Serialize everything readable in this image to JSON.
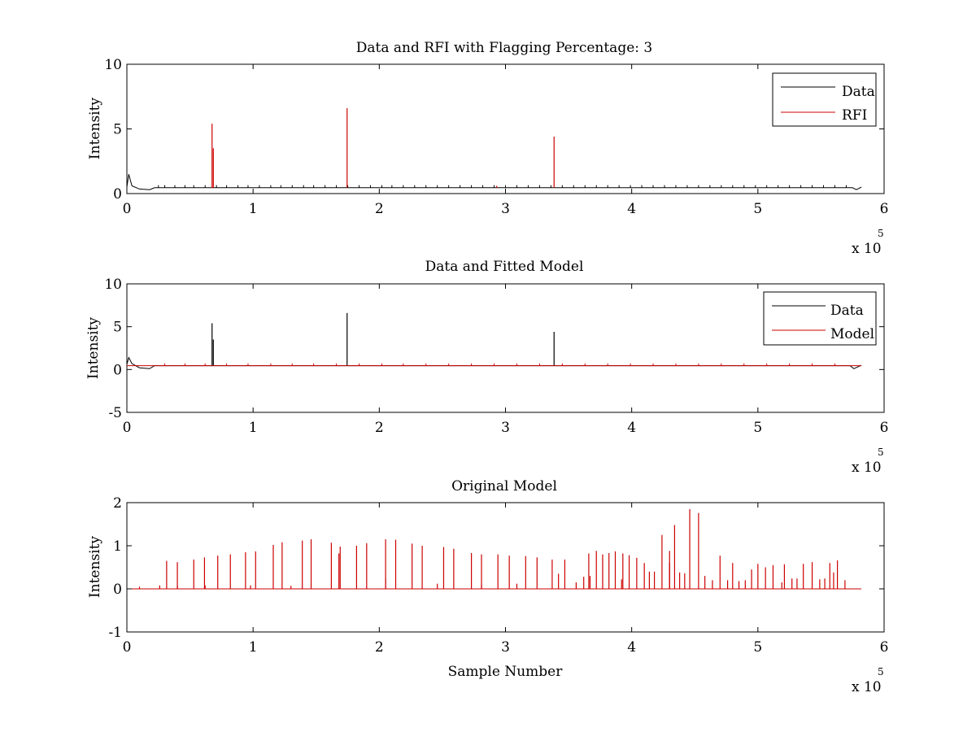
{
  "chart_data": [
    {
      "type": "line",
      "title": "Data and RFI with Flagging Percentage: 3",
      "xlabel": "",
      "ylabel": "Intensity",
      "xlim": [
        0,
        600000
      ],
      "ylim": [
        0,
        10
      ],
      "xticks": [
        0,
        1,
        2,
        3,
        4,
        5,
        6
      ],
      "yticks": [
        0,
        5,
        10
      ],
      "x_multiplier_label": "x 10",
      "x_multiplier_exponent": "5",
      "legend": {
        "position": "top-right",
        "entries": [
          "Data",
          "RFI"
        ]
      },
      "series": [
        {
          "name": "Data",
          "color": "#000000",
          "baseline": 0.45,
          "start_bump": [
            [
              0,
              0.5
            ],
            [
              1500,
              1.5
            ],
            [
              4000,
              0.6
            ],
            [
              10000,
              0.35
            ],
            [
              18000,
              0.3
            ],
            [
              22000,
              0.45
            ]
          ],
          "end_points": [
            [
              575000,
              0.45
            ],
            [
              578000,
              0.3
            ],
            [
              582000,
              0.5
            ]
          ],
          "x_end": 582000,
          "spike_x": [
            25000,
            30000,
            38000,
            46000,
            53000,
            62000,
            71000,
            79000,
            88000,
            96000,
            105000,
            114000,
            122000,
            131000,
            140000,
            148000,
            157000,
            166000,
            175000,
            184000,
            193000,
            202000,
            210000,
            219000,
            228000,
            237000,
            246000,
            255000,
            264000,
            273000,
            282000,
            291000,
            300000,
            309000,
            318000,
            327000,
            336000,
            345000,
            354000,
            363000,
            372000,
            381000,
            390000,
            399000,
            408000,
            417000,
            426000,
            435000,
            444000,
            453000,
            462000,
            471000,
            480000,
            489000,
            498000,
            507000,
            516000,
            525000,
            534000,
            543000,
            552000,
            561000,
            570000
          ],
          "spike_height": 0.65
        },
        {
          "name": "RFI",
          "color": "#cc0000",
          "spikes": [
            [
              67500,
              5.4
            ],
            [
              68500,
              3.5
            ],
            [
              174500,
              6.6
            ],
            [
              338500,
              4.4
            ],
            [
              293000,
              0.6
            ]
          ]
        }
      ]
    },
    {
      "type": "line",
      "title": "Data and Fitted Model",
      "xlabel": "",
      "ylabel": "Intensity",
      "xlim": [
        0,
        600000
      ],
      "ylim": [
        -5,
        10
      ],
      "xticks": [
        0,
        1,
        2,
        3,
        4,
        5,
        6
      ],
      "yticks": [
        -5,
        0,
        5,
        10
      ],
      "x_multiplier_label": "x 10",
      "x_multiplier_exponent": "5",
      "legend": {
        "position": "top-right",
        "entries": [
          "Data",
          "Model"
        ]
      },
      "series": [
        {
          "name": "Data",
          "color": "#000000",
          "baseline": 0.45,
          "start_bump": [
            [
              0,
              0.6
            ],
            [
              1500,
              1.4
            ],
            [
              4000,
              0.7
            ],
            [
              10000,
              0.2
            ],
            [
              18000,
              0.1
            ],
            [
              22000,
              0.45
            ]
          ],
          "end_points": [
            [
              573000,
              0.45
            ],
            [
              576000,
              0.1
            ],
            [
              582000,
              0.5
            ]
          ],
          "x_end": 582000,
          "spikes": [
            [
              67500,
              5.4
            ],
            [
              68500,
              3.5
            ],
            [
              174500,
              6.6
            ],
            [
              338500,
              4.4
            ]
          ]
        },
        {
          "name": "Model",
          "color": "#cc0000",
          "baseline": 0.45,
          "x_start": 0,
          "x_end": 582000,
          "spike_x": [
            30000,
            46000,
            62000,
            79000,
            96000,
            114000,
            131000,
            148000,
            166000,
            184000,
            202000,
            219000,
            237000,
            255000,
            273000,
            291000,
            309000,
            327000,
            345000,
            363000,
            381000,
            399000,
            417000,
            435000,
            453000,
            471000,
            489000,
            507000,
            525000,
            543000,
            561000
          ],
          "spike_height": 0.7
        }
      ]
    },
    {
      "type": "line",
      "title": "Original Model",
      "xlabel": "Sample Number",
      "ylabel": "Intensity",
      "xlim": [
        0,
        600000
      ],
      "ylim": [
        -1,
        2
      ],
      "xticks": [
        0,
        1,
        2,
        3,
        4,
        5,
        6
      ],
      "yticks": [
        -1,
        0,
        1,
        2
      ],
      "x_multiplier_label": "x 10",
      "x_multiplier_exponent": "5",
      "series": [
        {
          "name": "Model",
          "color": "#cc0000",
          "baseline": 0,
          "x_start": 0,
          "x_end": 582000,
          "spikes": [
            [
              10000,
              0.05
            ],
            [
              26000,
              0.08
            ],
            [
              31500,
              0.65
            ],
            [
              40000,
              0.62
            ],
            [
              53000,
              0.68
            ],
            [
              61500,
              0.73
            ],
            [
              72000,
              0.77
            ],
            [
              82000,
              0.8
            ],
            [
              94000,
              0.85
            ],
            [
              102000,
              0.87
            ],
            [
              116000,
              1.02
            ],
            [
              123000,
              1.08
            ],
            [
              139000,
              1.12
            ],
            [
              146000,
              1.15
            ],
            [
              162000,
              1.07
            ],
            [
              169000,
              0.98
            ],
            [
              182000,
              1.0
            ],
            [
              190000,
              1.06
            ],
            [
              205000,
              1.15
            ],
            [
              213000,
              1.14
            ],
            [
              226000,
              1.05
            ],
            [
              234000,
              1.0
            ],
            [
              251000,
              0.97
            ],
            [
              259000,
              0.93
            ],
            [
              273000,
              0.83
            ],
            [
              281000,
              0.8
            ],
            [
              294000,
              0.8
            ],
            [
              303000,
              0.77
            ],
            [
              316000,
              0.76
            ],
            [
              325000,
              0.73
            ],
            [
              337000,
              0.68
            ],
            [
              347000,
              0.68
            ],
            [
              356000,
              0.15
            ],
            [
              362000,
              0.28
            ],
            [
              366000,
              0.82
            ],
            [
              372000,
              0.88
            ],
            [
              377000,
              0.8
            ],
            [
              382000,
              0.83
            ],
            [
              387000,
              0.87
            ],
            [
              393000,
              0.82
            ],
            [
              398000,
              0.78
            ],
            [
              404000,
              0.72
            ],
            [
              410000,
              0.6
            ],
            [
              414000,
              0.4
            ],
            [
              418000,
              0.4
            ],
            [
              424000,
              1.25
            ],
            [
              430000,
              0.88
            ],
            [
              434000,
              1.48
            ],
            [
              438000,
              0.38
            ],
            [
              442000,
              0.36
            ],
            [
              446000,
              1.85
            ],
            [
              453000,
              1.76
            ],
            [
              458000,
              0.3
            ],
            [
              464000,
              0.2
            ],
            [
              470000,
              0.77
            ],
            [
              476000,
              0.2
            ],
            [
              480000,
              0.6
            ],
            [
              485000,
              0.18
            ],
            [
              490000,
              0.2
            ],
            [
              495000,
              0.45
            ],
            [
              500000,
              0.58
            ],
            [
              506000,
              0.5
            ],
            [
              512000,
              0.55
            ],
            [
              519000,
              0.15
            ],
            [
              521000,
              0.57
            ],
            [
              527000,
              0.24
            ],
            [
              531000,
              0.24
            ],
            [
              536000,
              0.58
            ],
            [
              543000,
              0.62
            ],
            [
              549000,
              0.22
            ],
            [
              553000,
              0.24
            ],
            [
              557000,
              0.6
            ],
            [
              563000,
              0.66
            ],
            [
              569000,
              0.2
            ],
            [
              40000,
              0.08
            ],
            [
              62000,
              0.08
            ],
            [
              98000,
              0.08
            ],
            [
              130000,
              0.07
            ],
            [
              168000,
              0.82
            ],
            [
              205000,
              0.25
            ],
            [
              246000,
              0.12
            ],
            [
              281000,
              0.1
            ],
            [
              309000,
              0.12
            ],
            [
              342000,
              0.35
            ],
            [
              367000,
              0.3
            ],
            [
              392000,
              0.22
            ],
            [
              430000,
              0.6
            ],
            [
              560000,
              0.38
            ]
          ]
        }
      ]
    }
  ]
}
